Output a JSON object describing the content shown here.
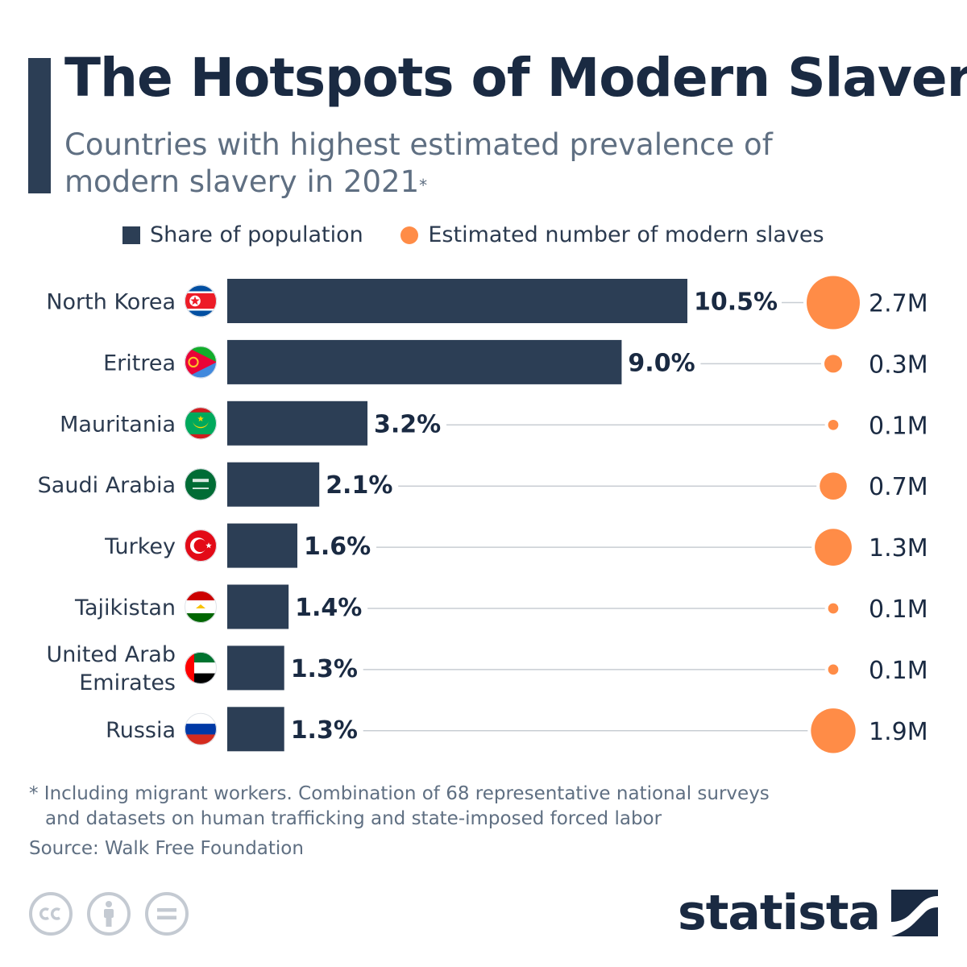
{
  "title": "The Hotspots of Modern Slavery",
  "subtitle": "Countries with highest estimated prevalence of modern slavery in 2021",
  "subtitle_mark": "*",
  "legend": {
    "share": "Share of population",
    "count": "Estimated number of modern slaves"
  },
  "footnote": {
    "line1": "* Including migrant workers. Combination of 68 representative national surveys",
    "line2": "and datasets on human trafficking and state-imposed forced labor"
  },
  "source": "Source: Walk Free Foundation",
  "brand": "statista",
  "colors": {
    "bar": "#2c3e55",
    "bubble": "#ff8c47",
    "connector": "#c8cdd3",
    "text": "#1a2a42"
  },
  "icons": [
    "cc-icon",
    "attribution-icon",
    "no-derivatives-icon",
    "statista-logo-icon"
  ],
  "chart_data": {
    "type": "bar",
    "orientation": "horizontal",
    "categories": [
      "North Korea",
      "Eritrea",
      "Mauritania",
      "Saudi Arabia",
      "Turkey",
      "Tajikistan",
      "United Arab Emirates",
      "Russia"
    ],
    "category_flags": [
      "north-korea-flag-icon",
      "eritrea-flag-icon",
      "mauritania-flag-icon",
      "saudi-arabia-flag-icon",
      "turkey-flag-icon",
      "tajikistan-flag-icon",
      "uae-flag-icon",
      "russia-flag-icon"
    ],
    "series": [
      {
        "name": "Share of population",
        "values": [
          10.5,
          9.0,
          3.2,
          2.1,
          1.6,
          1.4,
          1.3,
          1.3
        ],
        "labels": [
          "10.5%",
          "9.0%",
          "3.2%",
          "2.1%",
          "1.6%",
          "1.4%",
          "1.3%",
          "1.3%"
        ]
      },
      {
        "name": "Estimated number of modern slaves",
        "values": [
          2.7,
          0.3,
          0.1,
          0.7,
          1.3,
          0.1,
          0.1,
          1.9
        ],
        "labels": [
          "2.7M",
          "0.3M",
          "0.1M",
          "0.7M",
          "1.3M",
          "0.1M",
          "0.1M",
          "1.9M"
        ]
      }
    ],
    "legend_position": "top",
    "grid": false
  }
}
